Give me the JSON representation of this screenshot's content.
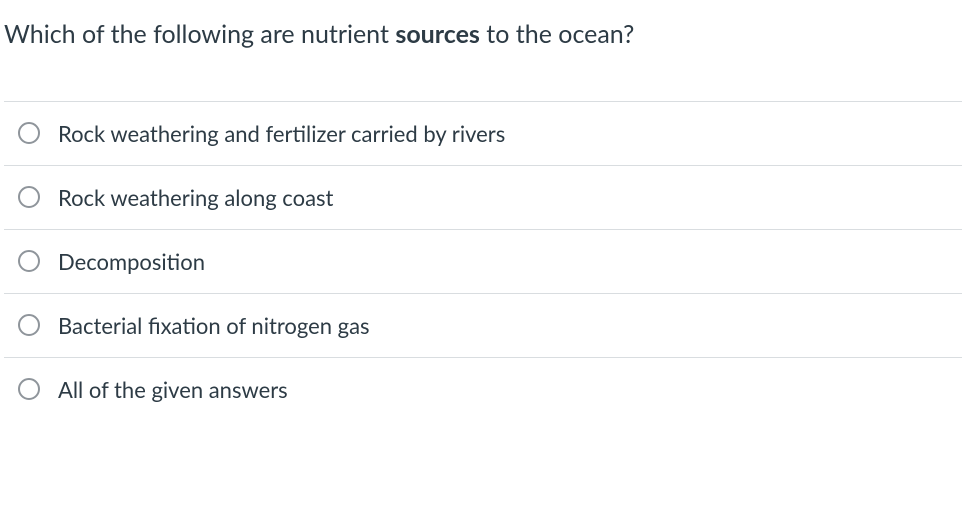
{
  "question": {
    "prefix": "Which of the following are nutrient ",
    "bold": "sources",
    "suffix": " to the ocean?"
  },
  "options": [
    {
      "label": "Rock weathering and fertilizer carried by rivers"
    },
    {
      "label": "Rock weathering along coast"
    },
    {
      "label": "Decomposition"
    },
    {
      "label": "Bacterial fixation of nitrogen gas"
    },
    {
      "label": "All of the given answers"
    }
  ],
  "colors": {
    "text": "#2d3b45",
    "border": "#d9dde0",
    "radio_border": "#8f959b",
    "background": "#ffffff"
  },
  "typography": {
    "question_fontsize": 25,
    "option_fontsize": 22,
    "font_family": "Lato, Helvetica Neue, Helvetica, Arial, sans-serif"
  }
}
